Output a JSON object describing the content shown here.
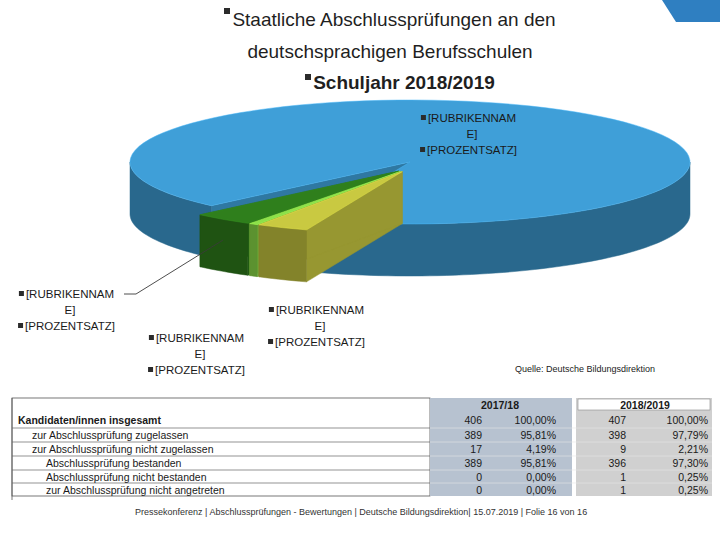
{
  "chart_data": {
    "type": "pie",
    "title": "Staatliche Abschlussprüfungen an den deutschsprachigen Berufsschulen",
    "subtitle": "Schuljahr 2018/2019",
    "categories": [
      "[RUBRIKENNAME]",
      "[RUBRIKENNAME]",
      "[RUBRIKENNAME]",
      "[RUBRIKENNAME]"
    ],
    "values": [
      93,
      3.5,
      0.5,
      3
    ],
    "value_labels": [
      "[PROZENTSATZ]",
      "[PROZENTSATZ]",
      "[PROZENTSATZ]",
      "[PROZENTSATZ]"
    ],
    "colors": [
      "#3f9fd8",
      "#2f7f1c",
      "#8de04a",
      "#c9c941"
    ],
    "data_labels": true
  },
  "source": "Quelle: Deutsche Bildungsdirektion",
  "table": {
    "header": [
      "2017/18",
      "2018/2019"
    ],
    "rows": [
      [
        "Kandidaten/innen insgesamt",
        "406",
        "100,00%",
        "407",
        "100,00%"
      ],
      [
        "zur Abschlussprüfung zugelassen",
        "389",
        "95,81%",
        "398",
        "97,79%"
      ],
      [
        "zur Abschlussprüfung nicht zugelassen",
        "17",
        "4,19%",
        "9",
        "2,21%"
      ],
      [
        "Abschlussprüfung bestanden",
        "389",
        "95,81%",
        "396",
        "97,30%"
      ],
      [
        "Abschlussprüfung nicht bestanden",
        "0",
        "0,00%",
        "1",
        "0,25%"
      ],
      [
        "zur Abschlussprüfung nicht angetreten",
        "0",
        "0,00%",
        "1",
        "0,25%"
      ]
    ]
  },
  "footer": "Pressekonferenz | Abschlussprüfungen - Bewertungen | Deutsche Bildungsdirektion| 15.07.2019 | Folie 16 von 16"
}
